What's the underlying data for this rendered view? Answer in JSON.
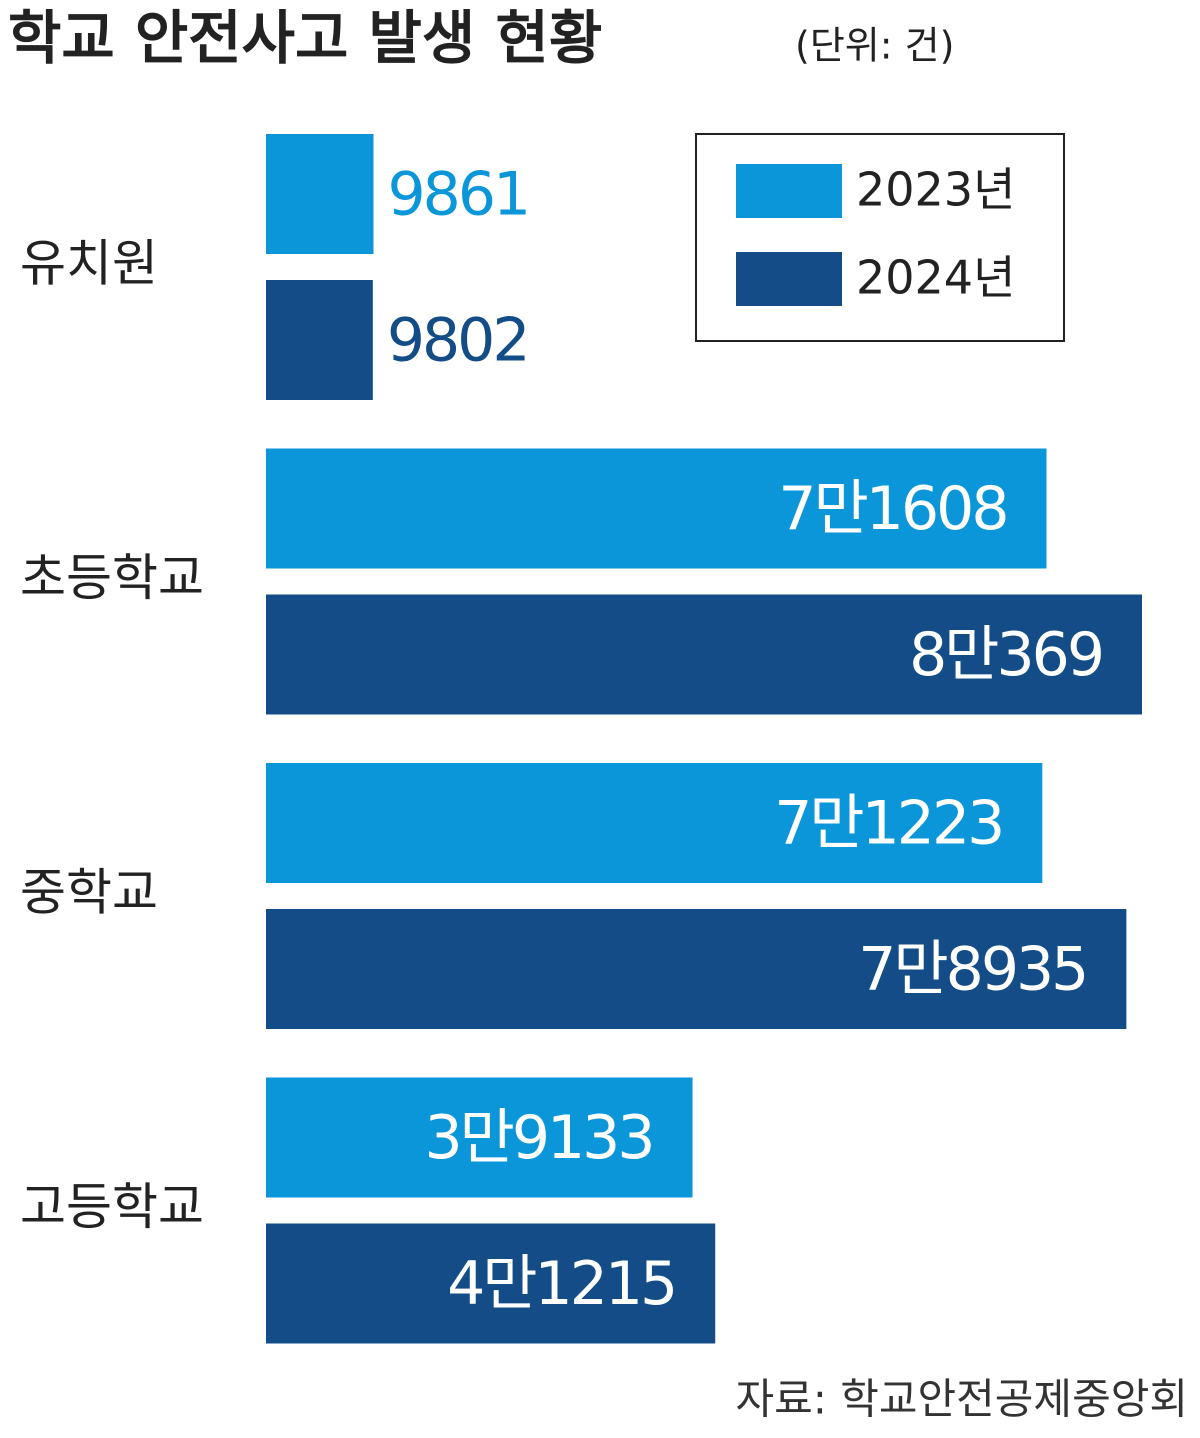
{
  "chart_data": {
    "type": "hbar",
    "title": "학교 안전사고 발생 현황",
    "subtitle": "(단위: 건)",
    "source": "자료: 학교안전공제중앙회",
    "categories": [
      "유치원",
      "초등학교",
      "중학교",
      "고등학교"
    ],
    "series": [
      {
        "name": "2023년",
        "color": "#0a96d8",
        "values": [
          9861,
          71608,
          71223,
          39133
        ],
        "value_labels": [
          "9861",
          "7만1608",
          "7만1223",
          "3만9133"
        ]
      },
      {
        "name": "2024년",
        "color": "#134c86",
        "values": [
          9802,
          80369,
          78935,
          41215
        ],
        "value_labels": [
          "9802",
          "8만369",
          "7만8935",
          "4만1215"
        ]
      }
    ],
    "legend": "top-right"
  }
}
